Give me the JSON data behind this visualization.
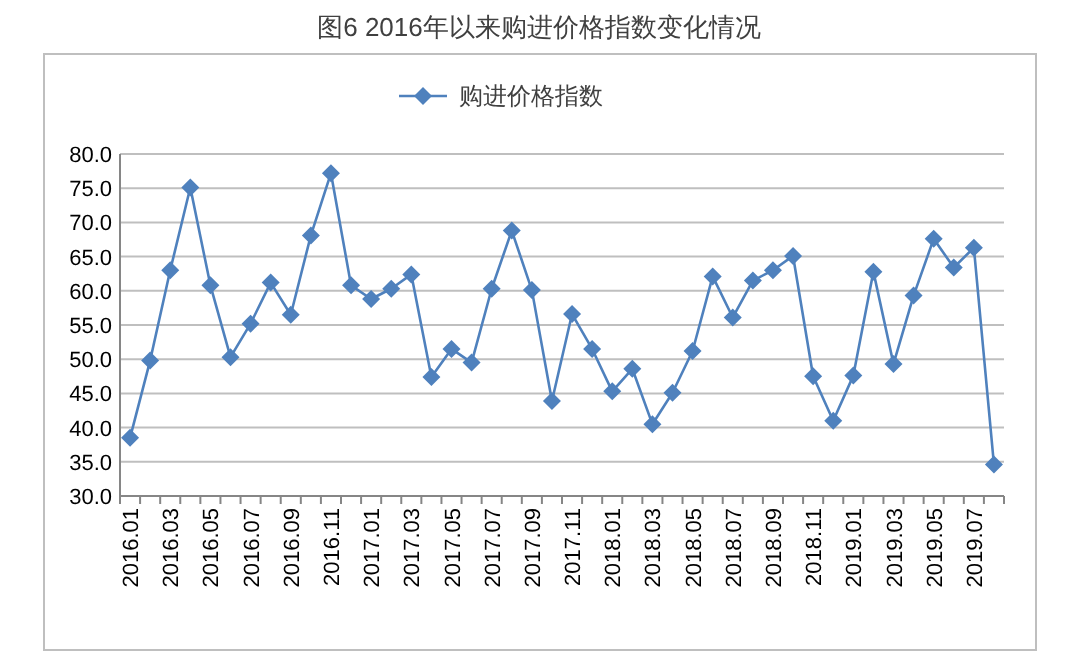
{
  "chart_data": {
    "type": "line",
    "title": "图6  2016年以来购进价格指数变化情况",
    "categories": [
      "2016.01",
      null,
      "2016.03",
      null,
      "2016.05",
      null,
      "2016.07",
      null,
      "2016.09",
      null,
      "2016.11",
      null,
      "2017.01",
      null,
      "2017.03",
      null,
      "2017.05",
      null,
      "2017.07",
      null,
      "2017.09",
      null,
      "2017.11",
      null,
      "2018.01",
      null,
      "2018.03",
      null,
      "2018.05",
      null,
      "2018.07",
      null,
      "2018.09",
      null,
      "2018.11",
      null,
      "2019.01",
      null,
      "2019.03",
      null,
      "2019.05",
      null,
      "2019.07",
      null
    ],
    "series": [
      {
        "name": "购进价格指数",
        "color": "#4f81bd",
        "values": [
          38.5,
          49.8,
          63.0,
          75.1,
          60.8,
          50.3,
          55.2,
          61.2,
          56.5,
          68.1,
          77.2,
          60.8,
          58.8,
          60.3,
          62.4,
          47.4,
          51.5,
          49.5,
          60.3,
          68.8,
          60.1,
          43.9,
          56.6,
          51.5,
          45.3,
          48.6,
          40.5,
          45.1,
          51.2,
          62.1,
          56.1,
          61.5,
          63.0,
          65.1,
          47.5,
          41.0,
          47.6,
          62.8,
          49.3,
          59.3,
          67.6,
          63.4,
          66.3,
          34.6
        ]
      }
    ],
    "ylim": [
      30,
      80
    ],
    "yticks": [
      {
        "value": 30,
        "label": "30.0"
      },
      {
        "value": 35,
        "label": "35.0"
      },
      {
        "value": 40,
        "label": "40.0"
      },
      {
        "value": 45,
        "label": "45.0"
      },
      {
        "value": 50,
        "label": "50.0"
      },
      {
        "value": 55,
        "label": "55.0"
      },
      {
        "value": 60,
        "label": "60.0"
      },
      {
        "value": 65,
        "label": "65.0"
      },
      {
        "value": 70,
        "label": "70.0"
      },
      {
        "value": 75,
        "label": "75.0"
      },
      {
        "value": 80,
        "label": "80.0"
      }
    ],
    "grid": "y",
    "legend": "top",
    "marker": "diamond",
    "line_style": "solid"
  }
}
